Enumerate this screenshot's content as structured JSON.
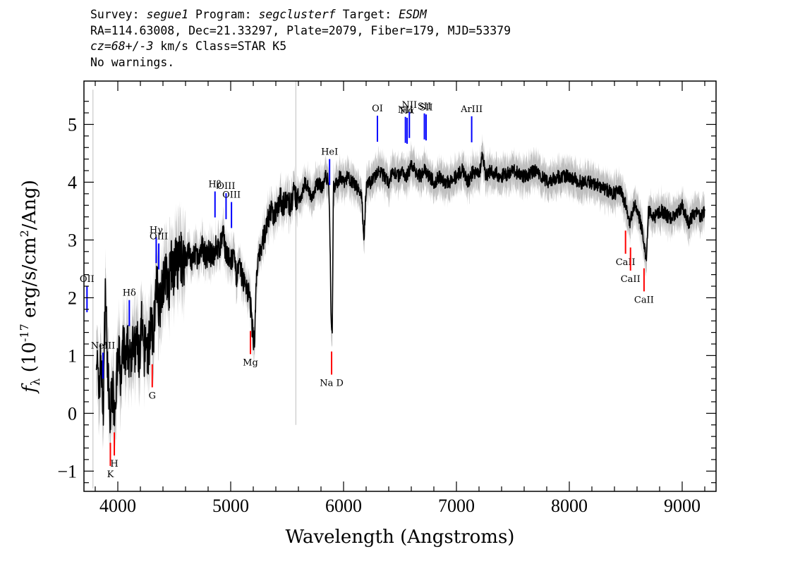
{
  "header": {
    "line1": {
      "survey_label": "Survey: ",
      "survey": "segue1",
      "program_label": " Program: ",
      "program": "segclusterf",
      "target_label": " Target: ",
      "target": "ESDM"
    },
    "line2": "RA=114.63008, Dec=21.33297, Plate=2079, Fiber=179, MJD=53379",
    "line3": {
      "cz": "cz=68+/-3",
      "rest": " km/s Class=STAR K5"
    },
    "line4": "No warnings."
  },
  "colors": {
    "spectrum": "#000000",
    "error_band": "#bfbfbf",
    "emission": "#0000ff",
    "absorption": "#ff0000",
    "axes": "#000000"
  },
  "chart_data": {
    "type": "line",
    "title": "",
    "xlabel": "Wavelength (Angstroms)",
    "ylabel": "f_λ (10^-17 erg/s/cm^2/Ang)",
    "xlim": [
      3700,
      9300
    ],
    "ylim": [
      -1.35,
      5.75
    ],
    "x_ticks": [
      4000,
      5000,
      6000,
      7000,
      8000,
      9000
    ],
    "y_ticks": [
      -1,
      0,
      1,
      2,
      3,
      4,
      5
    ],
    "grid": false,
    "series": [
      {
        "x": [
          3810,
          3830,
          3850,
          3870,
          3890,
          3910,
          3930,
          3950,
          3970,
          3990,
          4010,
          4030,
          4050,
          4070,
          4090,
          4110,
          4130,
          4150,
          4170,
          4190,
          4210,
          4230,
          4250,
          4270,
          4290,
          4310,
          4330,
          4350,
          4370,
          4390,
          4410,
          4430,
          4450,
          4470,
          4490,
          4510,
          4530,
          4550,
          4570,
          4600,
          4630,
          4660,
          4690,
          4720,
          4750,
          4780,
          4810,
          4840,
          4870,
          4900,
          4930,
          4960,
          4990,
          5020,
          5050,
          5080,
          5110,
          5140,
          5170,
          5190,
          5210,
          5230,
          5260,
          5290,
          5320,
          5350,
          5380,
          5410,
          5440,
          5470,
          5500,
          5530,
          5560,
          5580,
          5600,
          5630,
          5660,
          5690,
          5720,
          5750,
          5780,
          5810,
          5840,
          5870,
          5880,
          5890,
          5900,
          5910,
          5940,
          5970,
          6000,
          6040,
          6080,
          6120,
          6160,
          6180,
          6200,
          6240,
          6280,
          6320,
          6360,
          6400,
          6440,
          6480,
          6520,
          6560,
          6600,
          6640,
          6680,
          6720,
          6760,
          6800,
          6850,
          6900,
          6950,
          7000,
          7050,
          7100,
          7150,
          7200,
          7230,
          7260,
          7300,
          7400,
          7500,
          7600,
          7700,
          7800,
          7900,
          8000,
          8100,
          8200,
          8300,
          8400,
          8450,
          8500,
          8540,
          8560,
          8580,
          8620,
          8660,
          8680,
          8700,
          8760,
          8820,
          8880,
          8940,
          9000,
          9060,
          9120,
          9170,
          9200
        ],
        "values": [
          1.2,
          0.3,
          1.0,
          0.0,
          2.2,
          0.8,
          -0.2,
          0.5,
          0.1,
          0.6,
          1.0,
          0.5,
          1.2,
          0.8,
          1.2,
          0.8,
          1.4,
          1.0,
          1.3,
          0.9,
          1.5,
          1.0,
          1.3,
          1.0,
          1.6,
          1.2,
          1.9,
          2.2,
          1.8,
          2.3,
          2.2,
          2.5,
          2.1,
          2.6,
          2.4,
          2.7,
          2.5,
          2.8,
          2.6,
          2.7,
          2.8,
          2.6,
          2.8,
          2.6,
          2.9,
          2.7,
          2.8,
          2.7,
          2.9,
          2.8,
          3.1,
          2.8,
          2.6,
          2.7,
          2.4,
          2.5,
          2.3,
          2.2,
          2.0,
          1.5,
          1.2,
          2.4,
          2.8,
          3.0,
          3.3,
          3.5,
          3.4,
          3.6,
          3.7,
          3.6,
          3.7,
          3.6,
          3.8,
          3.7,
          3.7,
          3.8,
          4.0,
          3.9,
          3.7,
          3.9,
          4.0,
          3.9,
          4.1,
          4.0,
          3.0,
          1.6,
          1.4,
          3.9,
          4.0,
          4.1,
          4.0,
          4.1,
          4.0,
          3.9,
          3.8,
          3.0,
          3.9,
          4.0,
          4.1,
          4.2,
          4.1,
          4.0,
          4.2,
          4.1,
          4.2,
          4.1,
          4.3,
          4.2,
          4.1,
          4.2,
          4.1,
          4.0,
          4.1,
          4.0,
          4.0,
          4.1,
          4.2,
          4.0,
          4.2,
          4.1,
          4.5,
          4.1,
          4.2,
          4.1,
          4.2,
          4.1,
          4.2,
          4.0,
          4.1,
          4.1,
          4.0,
          4.0,
          3.9,
          3.8,
          3.9,
          3.6,
          3.3,
          3.5,
          3.6,
          3.4,
          3.0,
          2.6,
          3.5,
          3.4,
          3.5,
          3.4,
          3.4,
          3.6,
          3.3,
          3.5,
          3.4,
          3.5
        ]
      }
    ],
    "spectral_lines": [
      {
        "label": "NeIII",
        "wavelength": 3869,
        "kind": "emission",
        "position": "top"
      },
      {
        "label": "OII",
        "wavelength": 3727,
        "kind": "emission",
        "position": "top"
      },
      {
        "label": "Hδ",
        "wavelength": 4102,
        "kind": "emission",
        "position": "top"
      },
      {
        "label": "Hγ",
        "wavelength": 4340,
        "kind": "emission",
        "position": "top"
      },
      {
        "label": "OIII",
        "wavelength": 4363,
        "kind": "emission",
        "position": "top"
      },
      {
        "label": "Hβ",
        "wavelength": 4861,
        "kind": "emission",
        "position": "top"
      },
      {
        "label": "OIII",
        "wavelength": 4959,
        "kind": "emission",
        "position": "top"
      },
      {
        "label": "OIII",
        "wavelength": 5007,
        "kind": "emission",
        "position": "top"
      },
      {
        "label": "HeI",
        "wavelength": 5876,
        "kind": "emission",
        "position": "top"
      },
      {
        "label": "OI",
        "wavelength": 6300,
        "kind": "emission",
        "position": "top"
      },
      {
        "label": "NII",
        "wavelength": 6548,
        "kind": "emission",
        "position": "top"
      },
      {
        "label": "Hα",
        "wavelength": 6563,
        "kind": "emission",
        "position": "top"
      },
      {
        "label": "NII",
        "wavelength": 6583,
        "kind": "emission",
        "position": "top"
      },
      {
        "label": "SII",
        "wavelength": 6716,
        "kind": "emission",
        "position": "top"
      },
      {
        "label": "SII",
        "wavelength": 6731,
        "kind": "emission",
        "position": "top"
      },
      {
        "label": "ArIII",
        "wavelength": 7135,
        "kind": "emission",
        "position": "top"
      },
      {
        "label": "K",
        "wavelength": 3934,
        "kind": "absorption",
        "position": "bottom"
      },
      {
        "label": "H",
        "wavelength": 3969,
        "kind": "absorption",
        "position": "bottom"
      },
      {
        "label": "G",
        "wavelength": 4305,
        "kind": "absorption",
        "position": "bottom"
      },
      {
        "label": "Mg",
        "wavelength": 5175,
        "kind": "absorption",
        "position": "bottom"
      },
      {
        "label": "Na D",
        "wavelength": 5894,
        "kind": "absorption",
        "position": "bottom"
      },
      {
        "label": "CaII",
        "wavelength": 8498,
        "kind": "absorption",
        "position": "bottom"
      },
      {
        "label": "CaII",
        "wavelength": 8542,
        "kind": "absorption",
        "position": "bottom"
      },
      {
        "label": "CaII",
        "wavelength": 8662,
        "kind": "absorption",
        "position": "bottom"
      }
    ]
  }
}
